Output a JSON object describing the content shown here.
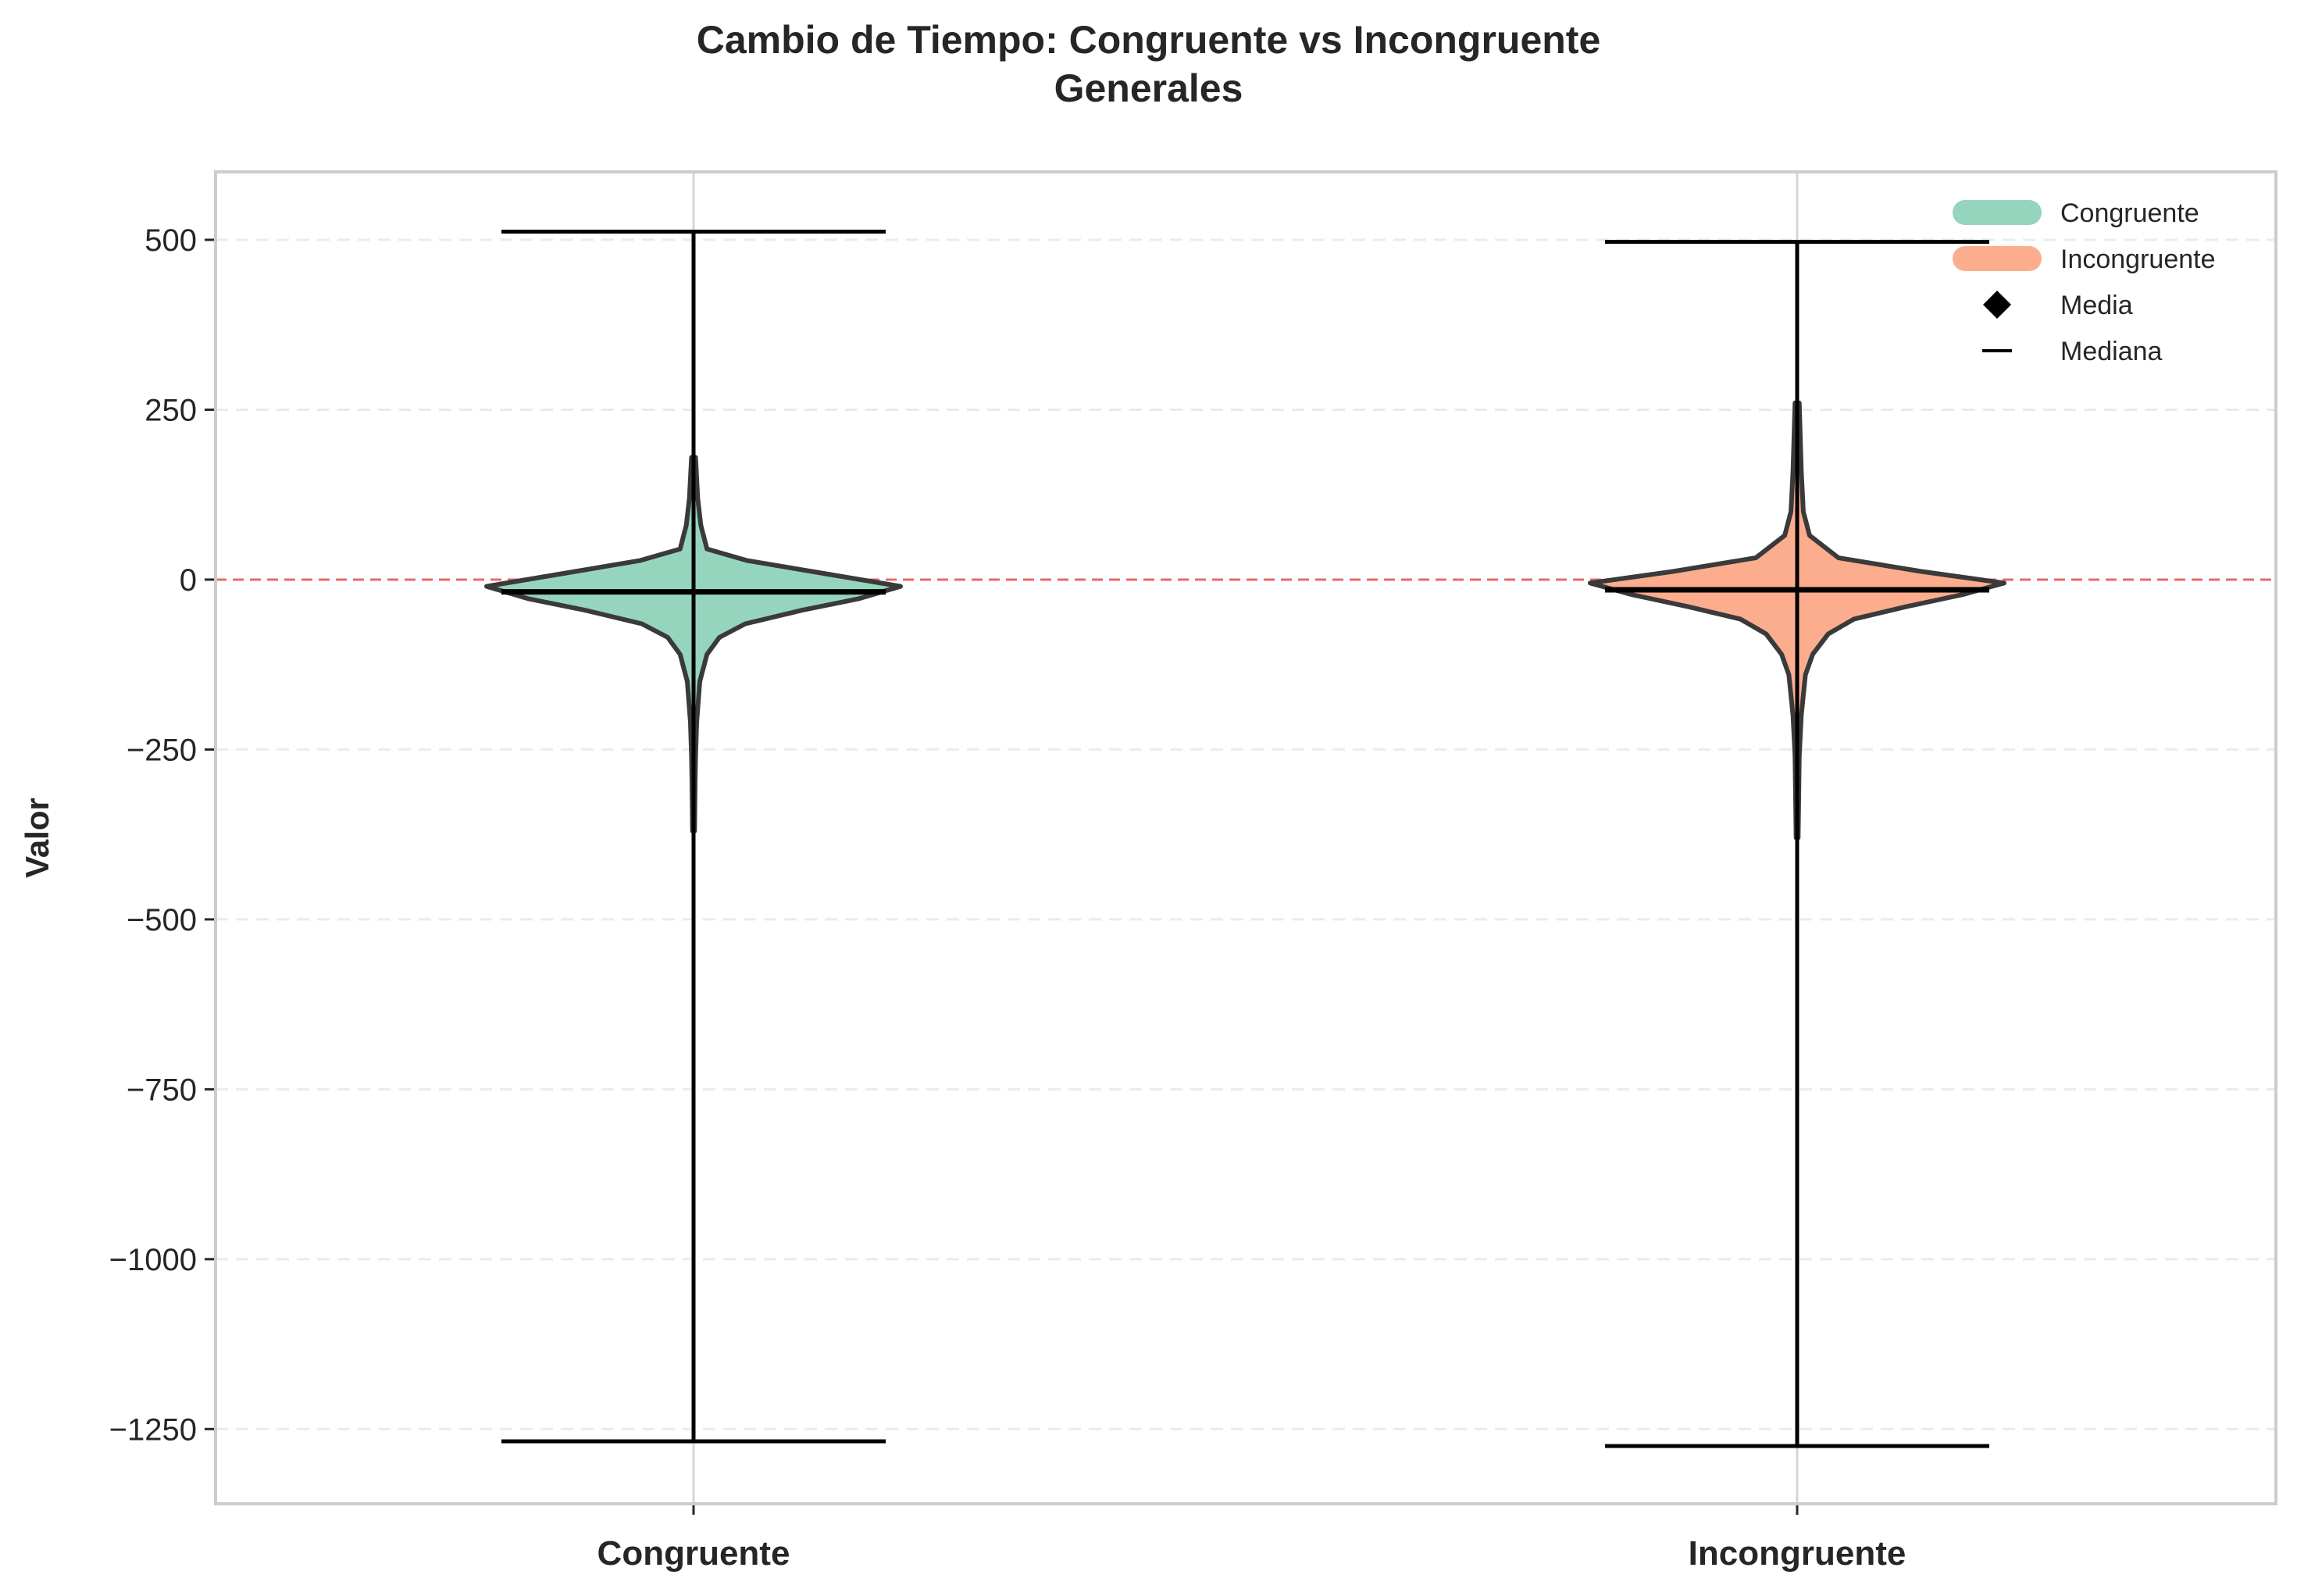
{
  "chart_data": {
    "type": "violin",
    "title_lines": [
      "Cambio de Tiempo: Congruente vs Incongruente",
      "Generales"
    ],
    "xlabel": "",
    "ylabel": "Valor",
    "categories": [
      "Congruente",
      "Incongruente"
    ],
    "ylim": [
      -1360,
      600
    ],
    "yticks": [
      500,
      250,
      0,
      -250,
      -500,
      -750,
      -1000,
      -1250
    ],
    "ytick_labels": [
      "500",
      "250",
      "0",
      "−250",
      "−500",
      "−750",
      "−1000",
      "−1250"
    ],
    "reference_line": 0,
    "grid": "y-dashed",
    "legend_position": "top-right",
    "legend": [
      {
        "label": "Congruente",
        "kind": "patch",
        "color": "#96d5bd"
      },
      {
        "label": "Incongruente",
        "kind": "patch",
        "color": "#fcad8e"
      },
      {
        "label": "Media",
        "kind": "diamond",
        "color": "#000000"
      },
      {
        "label": "Mediana",
        "kind": "line",
        "color": "#000000"
      }
    ],
    "series": [
      {
        "name": "Congruente",
        "color": "#96d5bd",
        "max": 512,
        "min": -1268,
        "median": -18,
        "density": [
          {
            "y": 180,
            "w": 0.02
          },
          {
            "y": 120,
            "w": 0.04
          },
          {
            "y": 80,
            "w": 0.07
          },
          {
            "y": 45,
            "w": 0.13
          },
          {
            "y": 28,
            "w": 0.52
          },
          {
            "y": 8,
            "w": 1.3
          },
          {
            "y": -10,
            "w": 2.0
          },
          {
            "y": -28,
            "w": 1.6
          },
          {
            "y": -45,
            "w": 1.05
          },
          {
            "y": -65,
            "w": 0.5
          },
          {
            "y": -85,
            "w": 0.25
          },
          {
            "y": -110,
            "w": 0.13
          },
          {
            "y": -150,
            "w": 0.06
          },
          {
            "y": -210,
            "w": 0.03
          },
          {
            "y": -260,
            "w": 0.02
          },
          {
            "y": -300,
            "w": 0.015
          },
          {
            "y": -370,
            "w": 0.01
          }
        ]
      },
      {
        "name": "Incongruente",
        "color": "#fcad8e",
        "max": 497,
        "min": -1275,
        "median": -15,
        "density": [
          {
            "y": 260,
            "w": 0.02
          },
          {
            "y": 160,
            "w": 0.04
          },
          {
            "y": 100,
            "w": 0.06
          },
          {
            "y": 65,
            "w": 0.12
          },
          {
            "y": 32,
            "w": 0.4
          },
          {
            "y": 12,
            "w": 1.2
          },
          {
            "y": -5,
            "w": 2.0
          },
          {
            "y": -22,
            "w": 1.6
          },
          {
            "y": -40,
            "w": 1.05
          },
          {
            "y": -58,
            "w": 0.55
          },
          {
            "y": -80,
            "w": 0.3
          },
          {
            "y": -110,
            "w": 0.15
          },
          {
            "y": -140,
            "w": 0.08
          },
          {
            "y": -200,
            "w": 0.04
          },
          {
            "y": -260,
            "w": 0.02
          },
          {
            "y": -320,
            "w": 0.015
          },
          {
            "y": -380,
            "w": 0.01
          }
        ]
      }
    ]
  }
}
